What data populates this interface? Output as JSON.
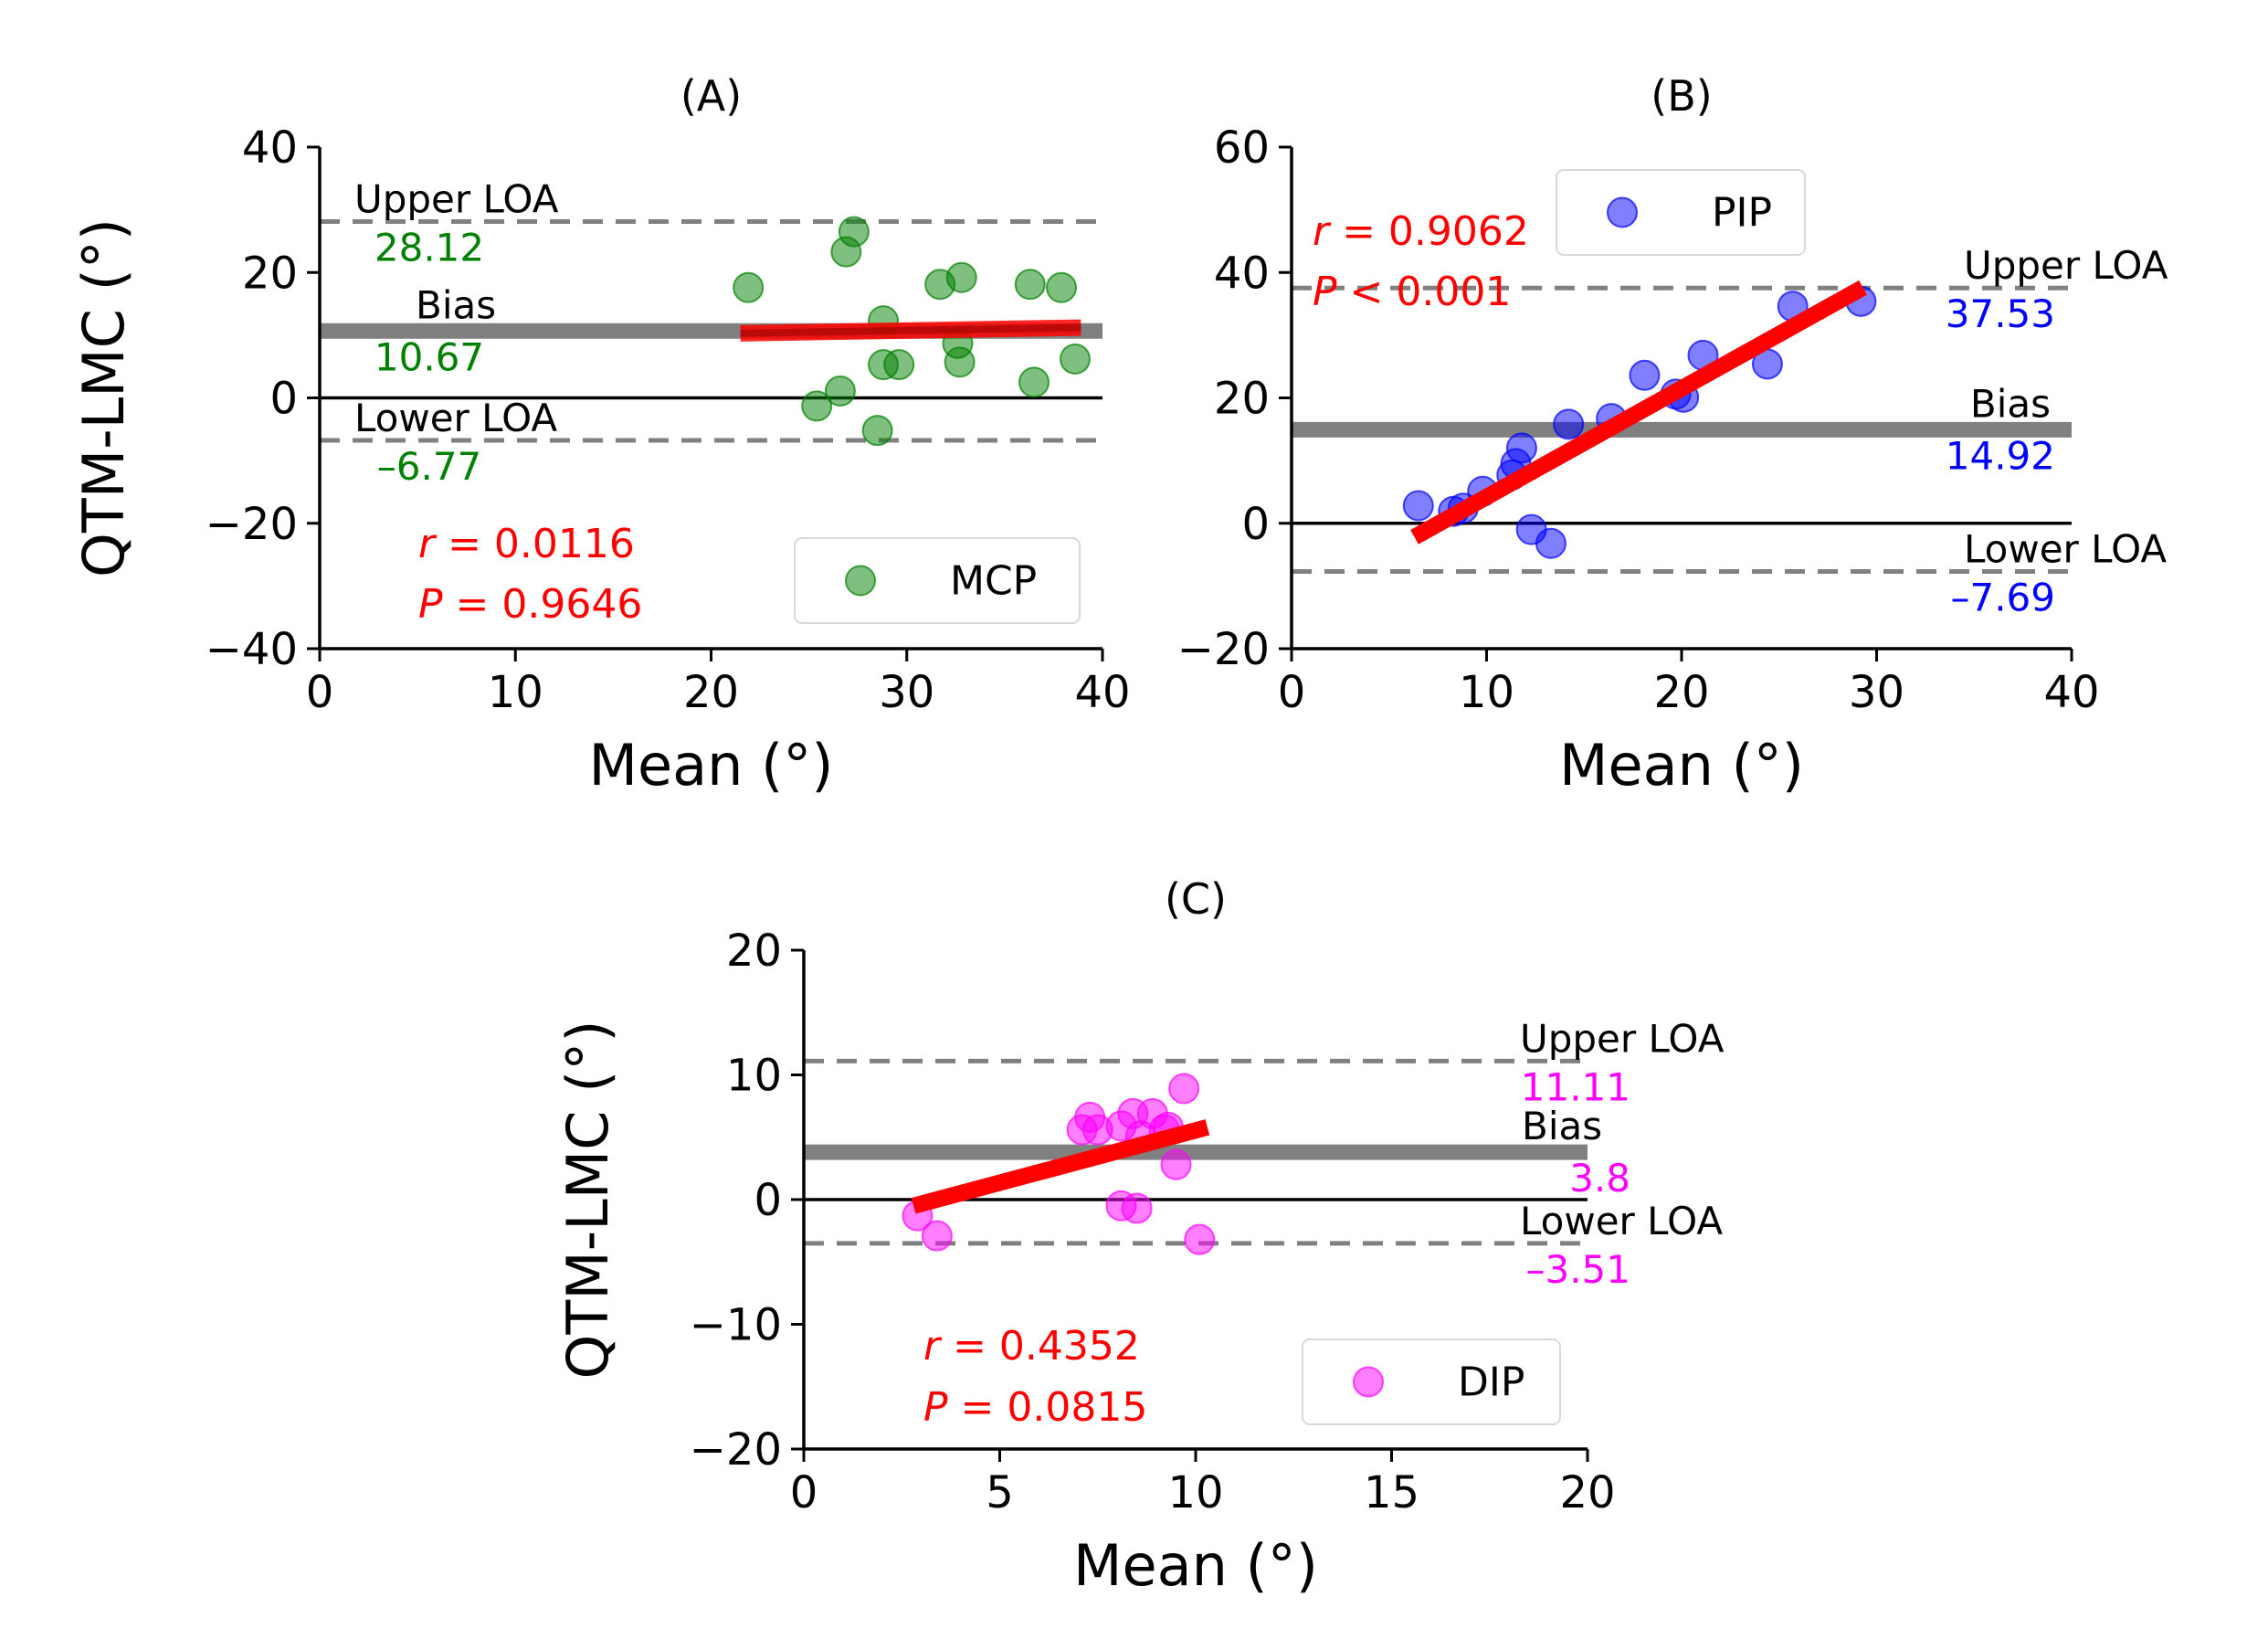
{
  "figure": {
    "colors": {
      "loa_line": "#808080",
      "zero_line": "#000000",
      "fit_line": "#ff0000",
      "stat_text": "#ff0000",
      "axis": "#000000"
    }
  },
  "chart_data": [
    {
      "type": "scatter",
      "title": "(A)",
      "xlabel": "Mean (°)",
      "ylabel": "QTM-LMC (°)",
      "xlim": [
        0,
        40
      ],
      "ylim": [
        -40,
        40
      ],
      "xticks": [
        0,
        10,
        20,
        30,
        40
      ],
      "xtick_labels": [
        "0",
        "10",
        "20",
        "30",
        "40"
      ],
      "yticks": [
        -40,
        -20,
        0,
        20,
        40
      ],
      "ytick_labels": [
        "−40",
        "−20",
        "0",
        "20",
        "40"
      ],
      "grid": false,
      "series": [
        {
          "name": "MCP",
          "color": "#008000",
          "points": [
            [
              21.9,
              17.6
            ],
            [
              25.4,
              -1.3
            ],
            [
              26.6,
              1.1
            ],
            [
              26.9,
              23.3
            ],
            [
              27.3,
              26.5
            ],
            [
              28.5,
              -5.2
            ],
            [
              28.8,
              12.3
            ],
            [
              28.8,
              5.3
            ],
            [
              29.6,
              5.3
            ],
            [
              31.7,
              18.1
            ],
            [
              32.6,
              8.7
            ],
            [
              32.7,
              5.7
            ],
            [
              32.8,
              19.2
            ],
            [
              36.3,
              18.1
            ],
            [
              36.5,
              2.5
            ],
            [
              37.9,
              17.6
            ],
            [
              38.6,
              6.2
            ]
          ]
        }
      ],
      "fit_line": {
        "x": [
          21.5,
          38.9
        ],
        "y": [
          10.3,
          11.2
        ]
      },
      "bias": 10.67,
      "upper_loa": 28.12,
      "lower_loa": -6.77,
      "value_color": "#008000",
      "annotation_labels": {
        "upper": "Upper LOA",
        "upper_value": "28.12",
        "bias": "Bias",
        "bias_value": "10.67",
        "lower": "Lower LOA",
        "lower_value": "–6.77"
      },
      "stats": {
        "r": "r = 0.0116",
        "p": "P = 0.9646"
      },
      "legend": "bottom-right"
    },
    {
      "type": "scatter",
      "title": "(B)",
      "xlabel": "Mean (°)",
      "ylabel": "",
      "xlim": [
        0,
        40
      ],
      "ylim": [
        -20,
        60
      ],
      "xticks": [
        0,
        10,
        20,
        30,
        40
      ],
      "xtick_labels": [
        "0",
        "10",
        "20",
        "30",
        "40"
      ],
      "yticks": [
        -20,
        0,
        20,
        40,
        60
      ],
      "ytick_labels": [
        "−20",
        "0",
        "20",
        "40",
        "60"
      ],
      "grid": false,
      "series": [
        {
          "name": "PIP",
          "color": "#0000ff",
          "points": [
            [
              6.5,
              2.8
            ],
            [
              8.3,
              1.9
            ],
            [
              8.8,
              2.4
            ],
            [
              9.8,
              5.1
            ],
            [
              11.3,
              7.7
            ],
            [
              11.5,
              9.5
            ],
            [
              11.8,
              12.0
            ],
            [
              12.3,
              -1.0
            ],
            [
              13.3,
              -3.2
            ],
            [
              14.2,
              15.8
            ],
            [
              16.4,
              16.7
            ],
            [
              18.1,
              23.6
            ],
            [
              19.7,
              20.6
            ],
            [
              20.1,
              20.1
            ],
            [
              21.1,
              26.8
            ],
            [
              24.4,
              25.4
            ],
            [
              25.7,
              34.6
            ],
            [
              29.2,
              35.4
            ]
          ]
        }
      ],
      "fit_line": {
        "x": [
          6.3,
          29.3
        ],
        "y": [
          -2.2,
          37.6
        ]
      },
      "bias": 14.92,
      "upper_loa": 37.53,
      "lower_loa": -7.69,
      "value_color": "#0000ff",
      "annotation_labels": {
        "upper": "Upper LOA",
        "upper_value": "37.53",
        "bias": "Bias",
        "bias_value": "14.92",
        "lower": "Lower LOA",
        "lower_value": "–7.69"
      },
      "stats": {
        "r": "r = 0.9062",
        "p": "P < 0.001"
      },
      "legend": "top-center"
    },
    {
      "type": "scatter",
      "title": "(C)",
      "xlabel": "Mean (°)",
      "ylabel": "QTM-LMC (°)",
      "xlim": [
        0,
        20
      ],
      "ylim": [
        -20,
        20
      ],
      "xticks": [
        0,
        5,
        10,
        15,
        20
      ],
      "xtick_labels": [
        "0",
        "5",
        "10",
        "15",
        "20"
      ],
      "yticks": [
        -20,
        -10,
        0,
        10,
        20
      ],
      "ytick_labels": [
        "−20",
        "−10",
        "0",
        "10",
        "20"
      ],
      "grid": false,
      "series": [
        {
          "name": "DIP",
          "color": "#ff00ff",
          "points": [
            [
              2.9,
              -1.3
            ],
            [
              3.4,
              -2.9
            ],
            [
              7.1,
              5.6
            ],
            [
              7.3,
              6.6
            ],
            [
              7.5,
              5.6
            ],
            [
              8.1,
              5.9
            ],
            [
              8.1,
              -0.5
            ],
            [
              8.4,
              6.9
            ],
            [
              8.5,
              -0.7
            ],
            [
              8.6,
              5.1
            ],
            [
              8.9,
              6.9
            ],
            [
              9.2,
              5.6
            ],
            [
              9.3,
              5.8
            ],
            [
              9.5,
              2.8
            ],
            [
              9.7,
              8.9
            ],
            [
              10.1,
              -3.2
            ]
          ]
        }
      ],
      "fit_line": {
        "x": [
          2.8,
          10.3
        ],
        "y": [
          -0.5,
          5.8
        ]
      },
      "bias": 3.8,
      "upper_loa": 11.11,
      "lower_loa": -3.51,
      "value_color": "#ff00ff",
      "annotation_labels": {
        "upper": "Upper LOA",
        "upper_value": "11.11",
        "bias": "Bias",
        "bias_value": "3.8",
        "lower": "Lower LOA",
        "lower_value": "–3.51"
      },
      "stats": {
        "r": "r = 0.4352",
        "p": "P = 0.0815"
      },
      "legend": "bottom-right"
    }
  ]
}
